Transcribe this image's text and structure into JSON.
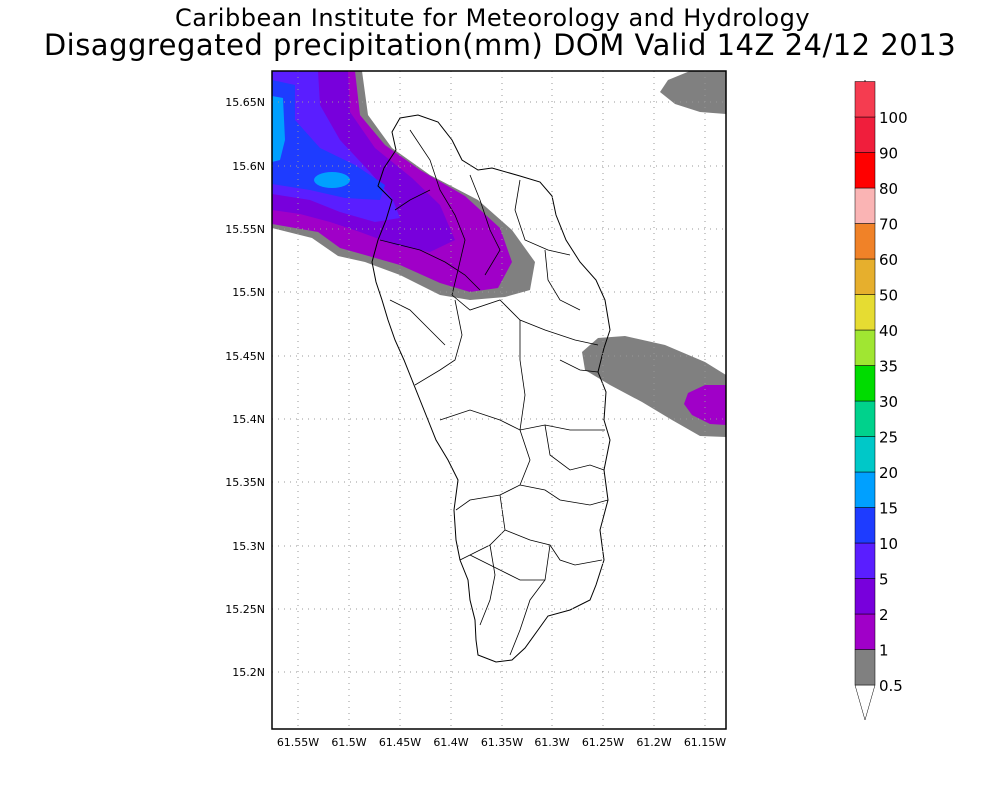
{
  "title": {
    "line1": "Caribbean Institute for Meteorology and Hydrology",
    "line2": "Disaggregated precipitation(mm) DOM Valid 14Z 24/12 2013"
  },
  "map": {
    "region": "Dominica",
    "lon_ticks": [
      "61.55W",
      "61.5W",
      "61.45W",
      "61.4W",
      "61.35W",
      "61.3W",
      "61.25W",
      "61.2W",
      "61.15W"
    ],
    "lat_ticks": [
      "15.65N",
      "15.6N",
      "15.55N",
      "15.5N",
      "15.45N",
      "15.4N",
      "15.35N",
      "15.3N",
      "15.25N",
      "15.2N"
    ],
    "gridlines": "dotted"
  },
  "colorbar": {
    "levels": [
      {
        "label": "0.5",
        "color": "#808080"
      },
      {
        "label": "1",
        "color": "#a000c8"
      },
      {
        "label": "2",
        "color": "#7800dc"
      },
      {
        "label": "5",
        "color": "#5a1eff"
      },
      {
        "label": "10",
        "color": "#1e3cff"
      },
      {
        "label": "15",
        "color": "#00a0ff"
      },
      {
        "label": "20",
        "color": "#00c8c8"
      },
      {
        "label": "25",
        "color": "#00d28c"
      },
      {
        "label": "30",
        "color": "#00dc00"
      },
      {
        "label": "35",
        "color": "#a0e632"
      },
      {
        "label": "40",
        "color": "#e6dc32"
      },
      {
        "label": "50",
        "color": "#e6af2d"
      },
      {
        "label": "60",
        "color": "#f08228"
      },
      {
        "label": "70",
        "color": "#fab4b4"
      },
      {
        "label": "80",
        "color": "#ff0000"
      },
      {
        "label": "90",
        "color": "#f01e3c"
      },
      {
        "label": "100",
        "color": "#f53c50"
      }
    ],
    "top_arrow_color": "#f00082",
    "bottom_arrow_color": "#ffffff"
  }
}
